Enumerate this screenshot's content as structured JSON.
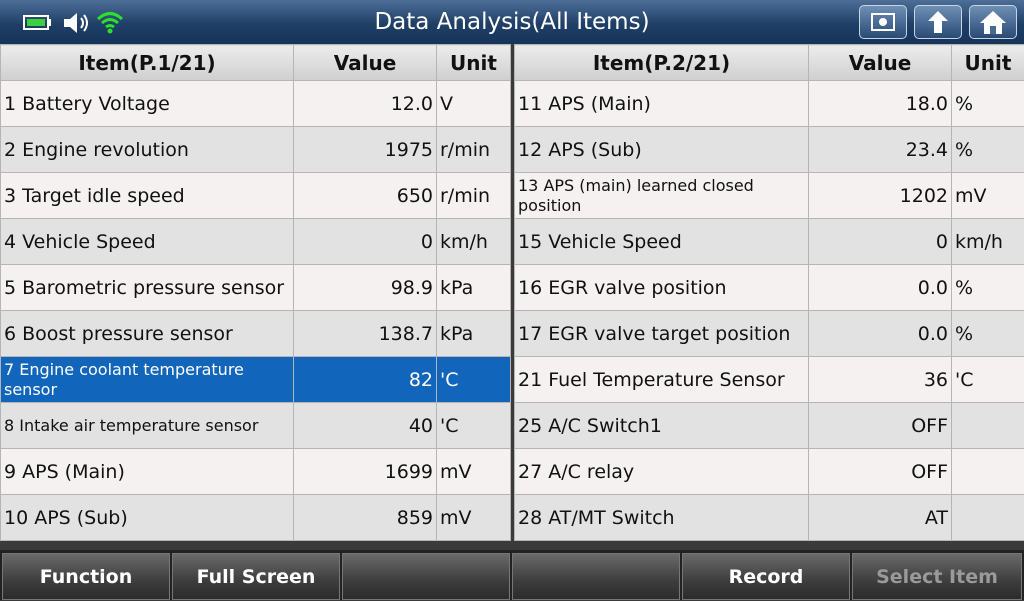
{
  "header": {
    "title": "Data Analysis(All Items)"
  },
  "tables": [
    {
      "columns": [
        "Item(P.1/21)",
        "Value",
        "Unit"
      ],
      "rows": [
        {
          "item": "1 Battery Voltage",
          "value": "12.0",
          "unit": "V"
        },
        {
          "item": "2 Engine revolution",
          "value": "1975",
          "unit": "r/min"
        },
        {
          "item": "3 Target idle speed",
          "value": "650",
          "unit": "r/min"
        },
        {
          "item": "4 Vehicle Speed",
          "value": "0",
          "unit": "km/h"
        },
        {
          "item": "5 Barometric pressure sensor",
          "value": "98.9",
          "unit": "kPa"
        },
        {
          "item": "6 Boost pressure sensor",
          "value": "138.7",
          "unit": "kPa"
        },
        {
          "item": "7 Engine coolant temperature sensor",
          "value": "82",
          "unit": "'C",
          "selected": true
        },
        {
          "item": "8 Intake air temperature sensor",
          "value": "40",
          "unit": "'C"
        },
        {
          "item": "9 APS (Main)",
          "value": "1699",
          "unit": "mV"
        },
        {
          "item": "10 APS (Sub)",
          "value": "859",
          "unit": "mV"
        }
      ]
    },
    {
      "columns": [
        "Item(P.2/21)",
        "Value",
        "Unit"
      ],
      "rows": [
        {
          "item": "11 APS (Main)",
          "value": "18.0",
          "unit": "%"
        },
        {
          "item": "12 APS (Sub)",
          "value": "23.4",
          "unit": "%"
        },
        {
          "item": "13 APS (main) learned closed position",
          "value": "1202",
          "unit": "mV"
        },
        {
          "item": "15 Vehicle Speed",
          "value": "0",
          "unit": "km/h"
        },
        {
          "item": "16 EGR valve position",
          "value": "0.0",
          "unit": "%"
        },
        {
          "item": "17 EGR valve target position",
          "value": "0.0",
          "unit": "%"
        },
        {
          "item": "21 Fuel Temperature Sensor",
          "value": "36",
          "unit": "'C"
        },
        {
          "item": "25 A/C Switch1",
          "value": "OFF"
        },
        {
          "item": "27 A/C relay",
          "value": "OFF"
        },
        {
          "item": "28 AT/MT Switch",
          "value": "AT"
        }
      ]
    }
  ],
  "footer": {
    "buttons": [
      "Function",
      "Full Screen",
      "Record",
      "Select Item"
    ]
  }
}
